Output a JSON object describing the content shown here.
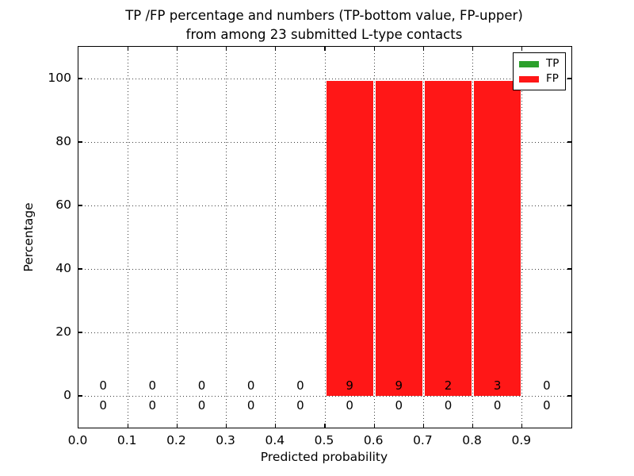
{
  "title": {
    "line1": "TP /FP percentage and numbers (TP-bottom value, FP-upper)",
    "line2": "from among 23 submitted L-type contacts"
  },
  "axes": {
    "x_label": "Predicted probability",
    "y_label": "Percentage",
    "x_tick_values": [
      0.0,
      0.1,
      0.2,
      0.3,
      0.4,
      0.5,
      0.6,
      0.7,
      0.8,
      0.9
    ],
    "x_tick_labels": [
      "0.0",
      "0.1",
      "0.2",
      "0.3",
      "0.4",
      "0.5",
      "0.6",
      "0.7",
      "0.8",
      "0.9"
    ],
    "y_tick_values": [
      0,
      20,
      40,
      60,
      80,
      100
    ],
    "y_tick_labels": [
      "0",
      "20",
      "40",
      "60",
      "80",
      "100"
    ],
    "xlim": [
      0.0,
      1.0
    ],
    "ylim": [
      -10,
      110
    ],
    "grid": "dotted"
  },
  "legend": {
    "position": "upper-right",
    "items": [
      {
        "label": "TP",
        "color": "#2ca02c"
      },
      {
        "label": "FP",
        "color": "#ff1717"
      }
    ]
  },
  "chart_data": {
    "type": "bar",
    "stacked": true,
    "title": "TP /FP percentage and numbers (TP-bottom value, FP-upper) from among 23 submitted L-type contacts",
    "xlabel": "Predicted probability",
    "ylabel": "Percentage",
    "xlim": [
      0.0,
      1.0
    ],
    "ylim": [
      -10,
      110
    ],
    "grid": true,
    "legend_position": "upper right",
    "total_contacts": 23,
    "bin_edges": [
      0.0,
      0.1,
      0.2,
      0.3,
      0.4,
      0.5,
      0.6,
      0.7,
      0.8,
      0.9,
      1.0
    ],
    "bin_centers": [
      0.05,
      0.15,
      0.25,
      0.35,
      0.45,
      0.55,
      0.65,
      0.75,
      0.85,
      0.95
    ],
    "series": [
      {
        "name": "TP",
        "color": "#2ca02c",
        "percent_values": [
          0,
          0,
          0,
          0,
          0,
          0,
          0,
          0,
          0,
          0
        ],
        "counts": [
          0,
          0,
          0,
          0,
          0,
          0,
          0,
          0,
          0,
          0
        ],
        "count_label_row": "bottom"
      },
      {
        "name": "FP",
        "color": "#ff1717",
        "percent_values": [
          0,
          0,
          0,
          0,
          0,
          100,
          100,
          100,
          100,
          0
        ],
        "counts": [
          0,
          0,
          0,
          0,
          0,
          9,
          9,
          2,
          3,
          0
        ],
        "count_label_row": "top"
      }
    ]
  }
}
